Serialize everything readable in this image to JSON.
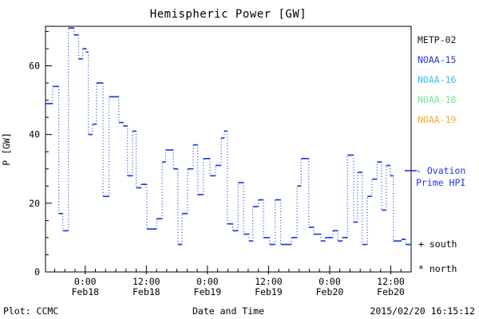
{
  "title": "Hemispheric Power [GW]",
  "legend": {
    "satellites": [
      {
        "label": "METP-02",
        "color": "#1a1a1a"
      },
      {
        "label": "NOAA-15",
        "color": "#2633e6"
      },
      {
        "label": "NOAA-16",
        "color": "#33bbff"
      },
      {
        "label": "NOAA-18",
        "color": "#66e896"
      },
      {
        "label": "NOAA-19",
        "color": "#ffa726"
      }
    ],
    "ovation": {
      "line1": "- Ovation",
      "line2": "Prime HPI",
      "color": "#2633e6"
    },
    "hemisphere_markers": [
      {
        "symbol": "+",
        "label": "south",
        "text": "+ south"
      },
      {
        "symbol": "*",
        "label": "north",
        "text": "* north"
      }
    ]
  },
  "footer": {
    "plot_credit": "Plot: CCMC",
    "timestamp": "2015/02/20 16:15:12"
  },
  "chart_data": {
    "type": "line",
    "subtype": "step-segments-with-dotted-connectors",
    "title": "Hemispheric Power [GW]",
    "xlabel": "Date and Time",
    "ylabel": "P [GW]",
    "line_color": "#1c40da",
    "x_unit": "hours relative to 2015-02-18 00:00 UT",
    "xlim": [
      -7.8,
      64.0
    ],
    "ylim": [
      0,
      71.5
    ],
    "x_minor_step_hours": 2,
    "y_minor_step": 5,
    "x_ticks": [
      {
        "t": 0,
        "time": "0:00",
        "date": "Feb18"
      },
      {
        "t": 12,
        "time": "12:00",
        "date": "Feb18"
      },
      {
        "t": 24,
        "time": "0:00",
        "date": "Feb19"
      },
      {
        "t": 36,
        "time": "12:00",
        "date": "Feb19"
      },
      {
        "t": 48,
        "time": "0:00",
        "date": "Feb20"
      },
      {
        "t": 60,
        "time": "12:00",
        "date": "Feb20"
      }
    ],
    "y_ticks": [
      0,
      20,
      40,
      60
    ],
    "grid": false,
    "legend_position": "right-outside",
    "step_breaks_hours": [
      -7.8,
      -6.4,
      -5.2,
      -4.4,
      -3.3,
      -2.2,
      -1.3,
      -0.5,
      0.2,
      0.6,
      1.4,
      2.2,
      3.5,
      4.7,
      6.6,
      7.5,
      8.3,
      9.3,
      10.0,
      11.0,
      12.1,
      14.0,
      15.1,
      15.8,
      17.3,
      18.2,
      19.0,
      20.1,
      21.2,
      22.1,
      23.2,
      24.5,
      25.6,
      26.7,
      27.3,
      27.9,
      29.0,
      30.0,
      31.1,
      32.2,
      32.9,
      34.0,
      35.0,
      36.2,
      37.3,
      38.4,
      40.5,
      41.6,
      42.4,
      43.9,
      44.9,
      46.3,
      47.1,
      48.6,
      49.6,
      50.5,
      51.5,
      52.7,
      53.5,
      54.4,
      55.4,
      56.3,
      57.3,
      58.2,
      59.1,
      59.9,
      60.5,
      62.1,
      62.9,
      64.0
    ],
    "power_levels_gw": [
      49,
      54,
      17,
      12,
      71,
      69,
      62,
      65,
      64,
      40,
      43,
      55,
      22,
      51,
      43.5,
      42.5,
      28,
      41,
      24.5,
      25.5,
      12.5,
      15.5,
      32,
      35.5,
      30,
      8,
      17,
      30,
      37,
      22.5,
      33,
      28,
      31,
      39,
      41,
      14,
      12,
      26,
      11,
      9,
      19,
      21,
      10,
      8,
      21,
      8,
      10,
      25,
      33,
      13,
      11,
      9,
      10,
      12,
      9,
      10,
      34,
      14.5,
      29,
      8,
      22,
      27,
      32,
      18,
      31,
      28,
      9,
      9.5,
      8
    ]
  }
}
